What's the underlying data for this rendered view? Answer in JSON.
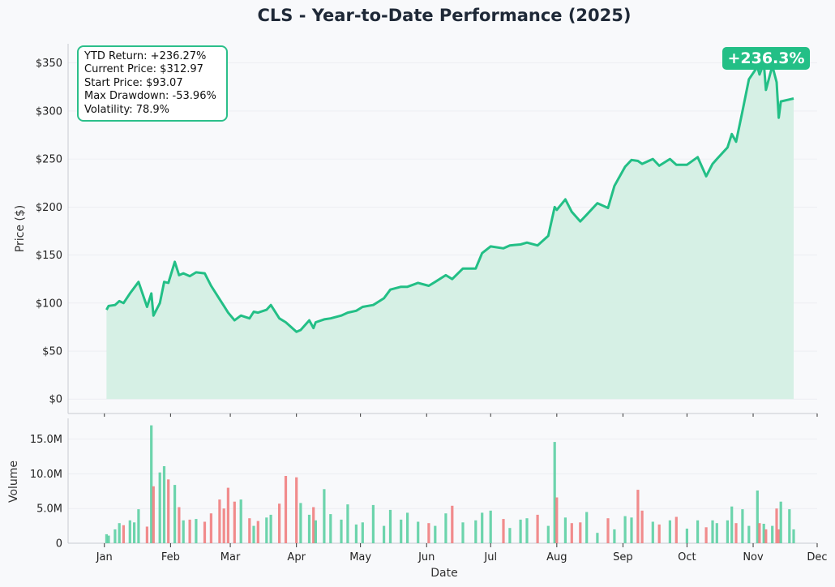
{
  "chart_data": [
    {
      "type": "area",
      "title": "CLS - Year-to-Date Performance (2025)",
      "ylabel": "Price ($)",
      "ylim": [
        -15,
        370
      ],
      "yticks": [
        0,
        50,
        100,
        150,
        200,
        250,
        300,
        350
      ],
      "ytick_labels": [
        "$0",
        "$50",
        "$100",
        "$150",
        "$200",
        "$250",
        "$300",
        "$350"
      ],
      "grid": true,
      "line_color": "#23bf86",
      "fill_color": "#d4efe4",
      "x": [
        "2025-01-02",
        "2025-01-03",
        "2025-01-06",
        "2025-01-08",
        "2025-01-10",
        "2025-01-13",
        "2025-01-15",
        "2025-01-17",
        "2025-01-21",
        "2025-01-23",
        "2025-01-24",
        "2025-01-27",
        "2025-01-29",
        "2025-01-31",
        "2025-02-03",
        "2025-02-05",
        "2025-02-07",
        "2025-02-10",
        "2025-02-13",
        "2025-02-17",
        "2025-02-20",
        "2025-02-24",
        "2025-02-26",
        "2025-02-28",
        "2025-03-03",
        "2025-03-06",
        "2025-03-10",
        "2025-03-12",
        "2025-03-14",
        "2025-03-18",
        "2025-03-20",
        "2025-03-24",
        "2025-03-27",
        "2025-04-01",
        "2025-04-03",
        "2025-04-07",
        "2025-04-09",
        "2025-04-10",
        "2025-04-14",
        "2025-04-17",
        "2025-04-22",
        "2025-04-25",
        "2025-04-29",
        "2025-05-02",
        "2025-05-07",
        "2025-05-12",
        "2025-05-15",
        "2025-05-20",
        "2025-05-23",
        "2025-05-28",
        "2025-06-02",
        "2025-06-05",
        "2025-06-10",
        "2025-06-13",
        "2025-06-18",
        "2025-06-24",
        "2025-06-27",
        "2025-07-01",
        "2025-07-07",
        "2025-07-10",
        "2025-07-15",
        "2025-07-18",
        "2025-07-23",
        "2025-07-28",
        "2025-07-31",
        "2025-08-01",
        "2025-08-05",
        "2025-08-08",
        "2025-08-12",
        "2025-08-15",
        "2025-08-20",
        "2025-08-25",
        "2025-08-28",
        "2025-09-02",
        "2025-09-05",
        "2025-09-08",
        "2025-09-10",
        "2025-09-15",
        "2025-09-18",
        "2025-09-23",
        "2025-09-26",
        "2025-10-01",
        "2025-10-06",
        "2025-10-10",
        "2025-10-13",
        "2025-10-15",
        "2025-10-20",
        "2025-10-22",
        "2025-10-24",
        "2025-10-27",
        "2025-10-30",
        "2025-11-03",
        "2025-11-04",
        "2025-11-06",
        "2025-11-07",
        "2025-11-10",
        "2025-11-12",
        "2025-11-13",
        "2025-11-14",
        "2025-11-18",
        "2025-11-20"
      ],
      "y": [
        93,
        97,
        98,
        102,
        100,
        110,
        116,
        122,
        96,
        110,
        87,
        100,
        122,
        121,
        143,
        129,
        131,
        128,
        132,
        131,
        118,
        104,
        97,
        90,
        82,
        87,
        84,
        91,
        90,
        93,
        98,
        84,
        80,
        70,
        72,
        82,
        74,
        80,
        83,
        84,
        87,
        90,
        92,
        96,
        98,
        105,
        114,
        117,
        117,
        121,
        118,
        122,
        129,
        125,
        136,
        136,
        152,
        159,
        157,
        160,
        161,
        163,
        160,
        170,
        200,
        197,
        208,
        195,
        185,
        192,
        204,
        199,
        222,
        242,
        249,
        248,
        245,
        250,
        243,
        250,
        244,
        244,
        252,
        232,
        245,
        250,
        262,
        276,
        268,
        300,
        333,
        346,
        338,
        350,
        322,
        347,
        330,
        293,
        310,
        312,
        313
      ]
    },
    {
      "type": "bar",
      "ylabel": "Volume",
      "xlabel": "Date",
      "ylim": [
        0,
        18000000
      ],
      "yticks": [
        0,
        5000000,
        10000000,
        15000000
      ],
      "ytick_labels": [
        "0",
        "5.0M",
        "10.0M",
        "15.0M"
      ],
      "xtick_labels": [
        "Jan",
        "Feb",
        "Mar",
        "Apr",
        "May",
        "Jun",
        "Jul",
        "Aug",
        "Sep",
        "Oct",
        "Nov",
        "Dec"
      ],
      "colors": {
        "up": "#5ccfa3",
        "down": "#ef7e80"
      },
      "x": [
        "2025-01-02",
        "2025-01-03",
        "2025-01-06",
        "2025-01-08",
        "2025-01-10",
        "2025-01-13",
        "2025-01-15",
        "2025-01-17",
        "2025-01-21",
        "2025-01-23",
        "2025-01-24",
        "2025-01-27",
        "2025-01-29",
        "2025-01-31",
        "2025-02-03",
        "2025-02-05",
        "2025-02-07",
        "2025-02-10",
        "2025-02-13",
        "2025-02-17",
        "2025-02-20",
        "2025-02-24",
        "2025-02-26",
        "2025-02-28",
        "2025-03-03",
        "2025-03-06",
        "2025-03-10",
        "2025-03-12",
        "2025-03-14",
        "2025-03-18",
        "2025-03-20",
        "2025-03-24",
        "2025-03-27",
        "2025-04-01",
        "2025-04-03",
        "2025-04-07",
        "2025-04-09",
        "2025-04-10",
        "2025-04-14",
        "2025-04-17",
        "2025-04-22",
        "2025-04-25",
        "2025-04-29",
        "2025-05-02",
        "2025-05-07",
        "2025-05-12",
        "2025-05-15",
        "2025-05-20",
        "2025-05-23",
        "2025-05-28",
        "2025-06-02",
        "2025-06-05",
        "2025-06-10",
        "2025-06-13",
        "2025-06-18",
        "2025-06-24",
        "2025-06-27",
        "2025-07-01",
        "2025-07-07",
        "2025-07-10",
        "2025-07-15",
        "2025-07-18",
        "2025-07-23",
        "2025-07-28",
        "2025-07-31",
        "2025-08-01",
        "2025-08-05",
        "2025-08-08",
        "2025-08-12",
        "2025-08-15",
        "2025-08-20",
        "2025-08-25",
        "2025-08-28",
        "2025-09-02",
        "2025-09-05",
        "2025-09-08",
        "2025-09-10",
        "2025-09-15",
        "2025-09-18",
        "2025-09-23",
        "2025-09-26",
        "2025-10-01",
        "2025-10-06",
        "2025-10-10",
        "2025-10-13",
        "2025-10-15",
        "2025-10-20",
        "2025-10-22",
        "2025-10-24",
        "2025-10-27",
        "2025-10-30",
        "2025-11-03",
        "2025-11-04",
        "2025-11-06",
        "2025-11-07",
        "2025-11-10",
        "2025-11-12",
        "2025-11-13",
        "2025-11-14",
        "2025-11-18",
        "2025-11-20"
      ],
      "volume": [
        1.3,
        1.1,
        2.0,
        2.9,
        2.6,
        3.3,
        3.0,
        4.9,
        2.4,
        17.0,
        8.2,
        10.2,
        11.1,
        9.2,
        8.4,
        5.2,
        3.3,
        3.4,
        3.5,
        3.1,
        4.3,
        6.3,
        5.0,
        8.0,
        6.0,
        6.3,
        3.6,
        2.5,
        3.2,
        3.7,
        4.1,
        5.7,
        9.7,
        9.5,
        5.8,
        4.1,
        5.2,
        3.3,
        7.8,
        4.2,
        3.4,
        5.6,
        2.7,
        3.0,
        5.5,
        2.5,
        4.8,
        3.4,
        4.4,
        3.1,
        2.9,
        2.5,
        4.3,
        5.4,
        3.0,
        3.3,
        4.4,
        4.7,
        3.5,
        2.2,
        3.4,
        3.6,
        4.1,
        2.5,
        14.6,
        6.6,
        3.7,
        2.9,
        3.0,
        4.5,
        1.5,
        3.6,
        2.0,
        3.9,
        3.7,
        7.7,
        4.7,
        3.1,
        2.7,
        3.3,
        3.8,
        2.1,
        3.3,
        2.3,
        3.3,
        2.9,
        3.3,
        5.3,
        2.9,
        4.9,
        2.5,
        7.6,
        2.9,
        2.8,
        2.0,
        2.5,
        5.0,
        2.0,
        6.0,
        4.9,
        2.0
      ]
    }
  ],
  "stats_box": {
    "ytd_return": "YTD Return: +236.27%",
    "current_price": "Current Price: $312.97",
    "start_price": "Start Price: $93.07",
    "max_drawdown": "Max Drawdown: -53.96%",
    "volatility": "Volatility: 78.9%"
  },
  "badge": "+236.3%"
}
